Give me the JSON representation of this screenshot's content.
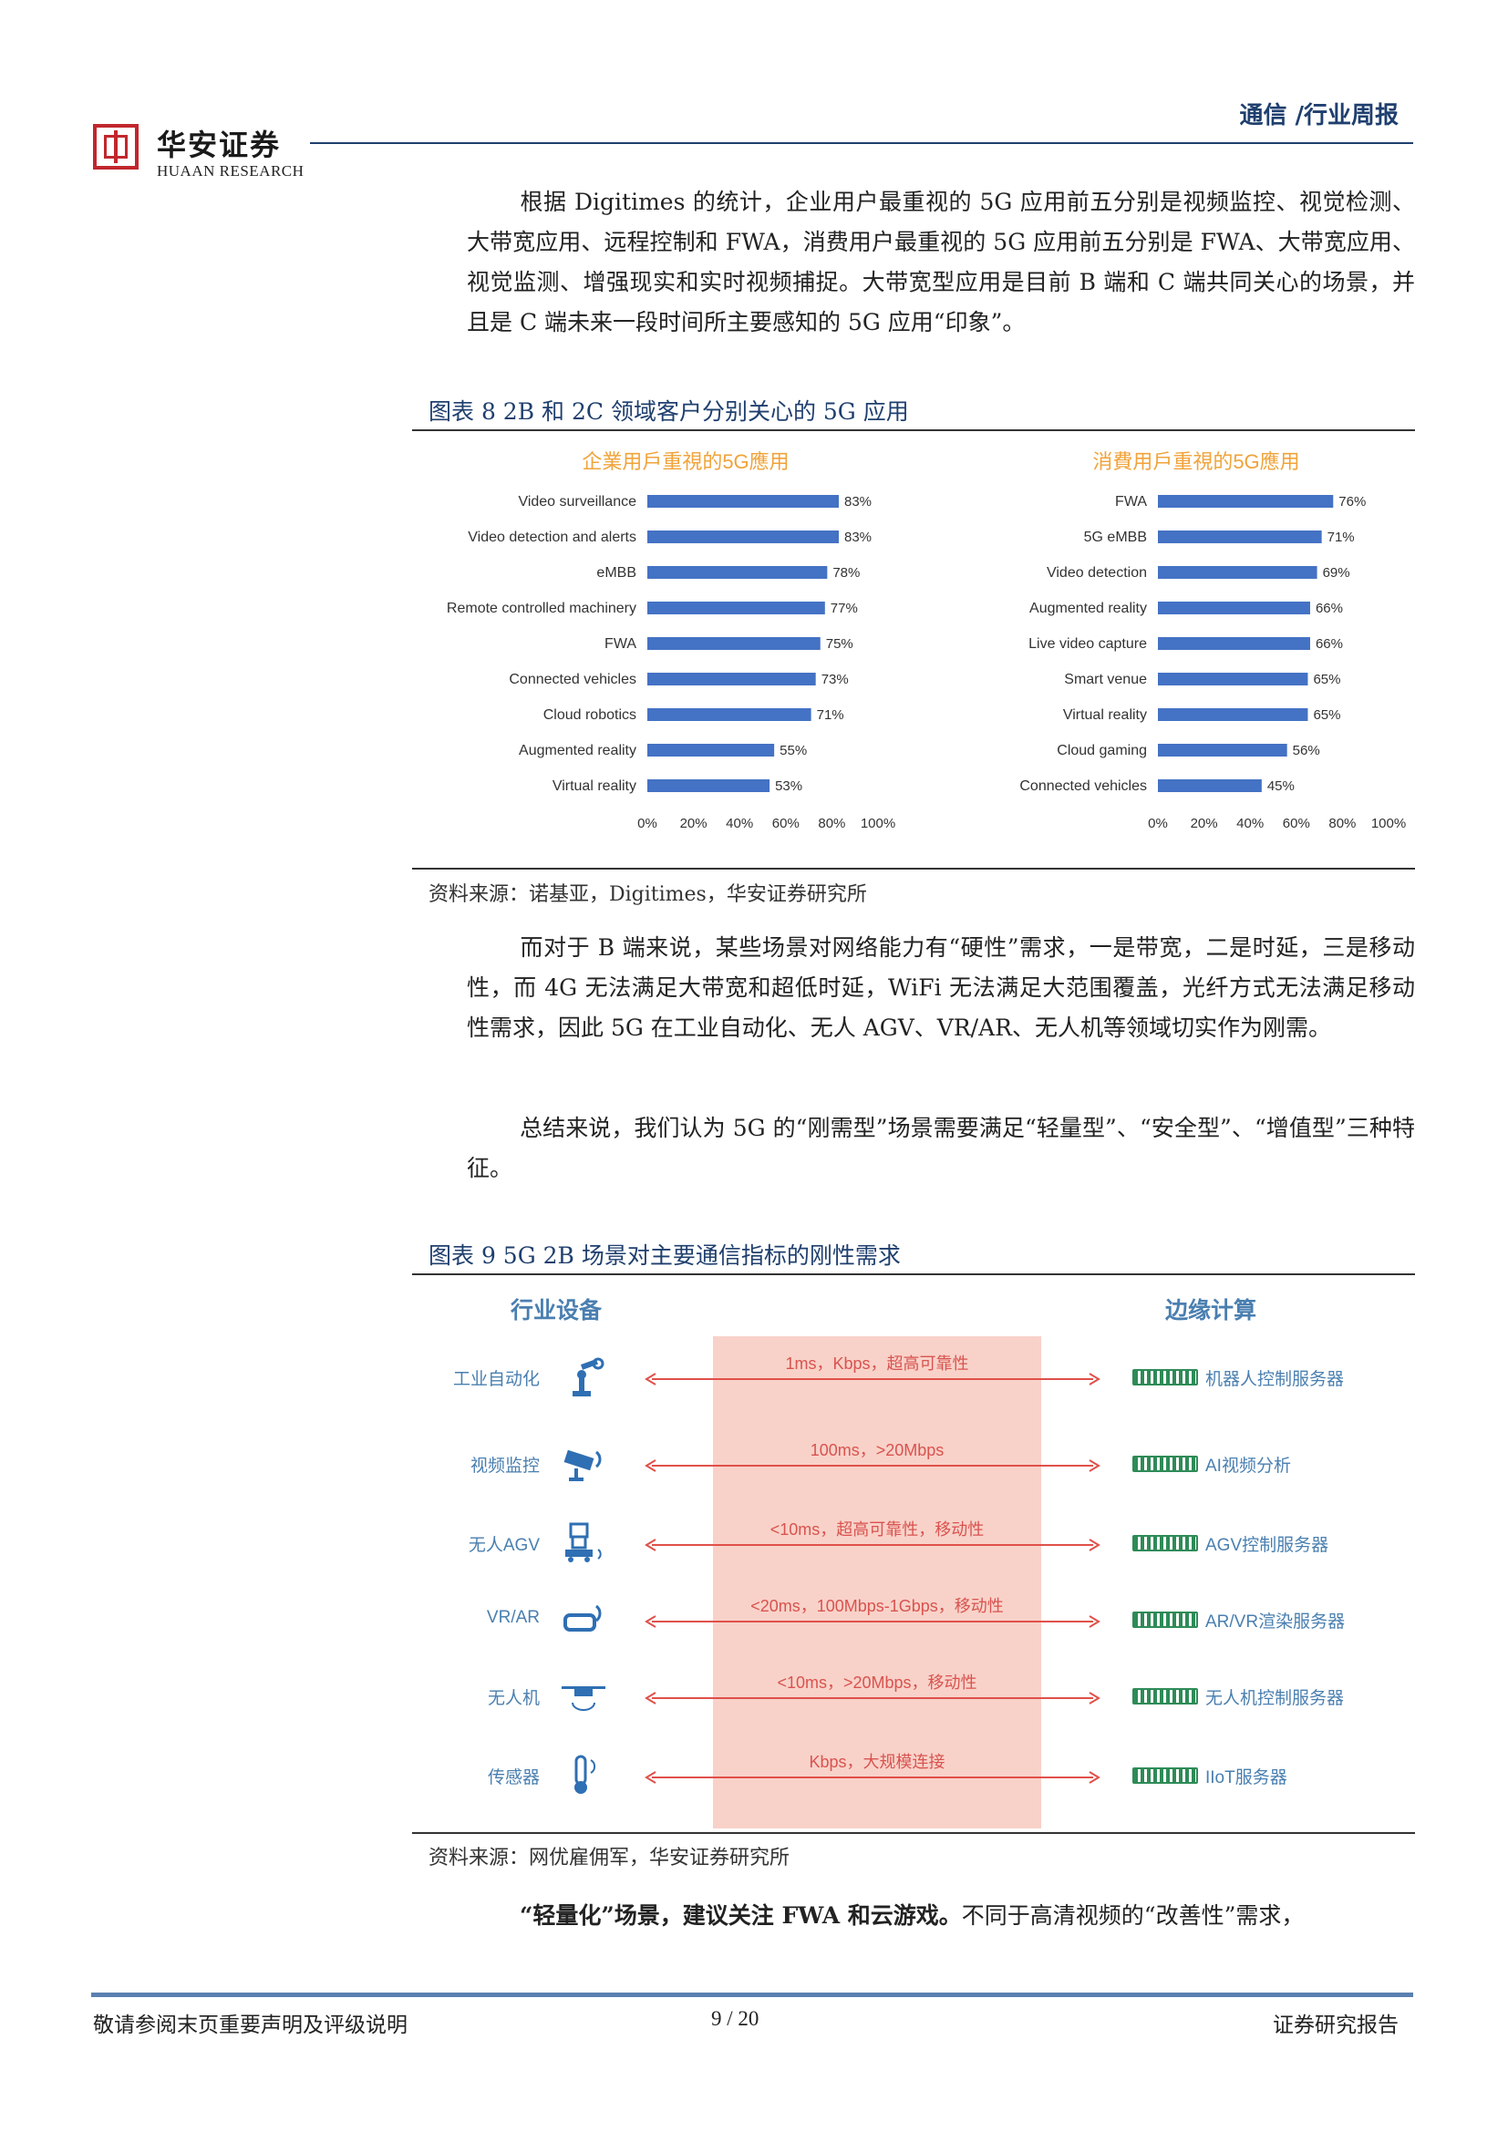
{
  "header": {
    "brand_cn": "华安证券",
    "brand_en": "HUAAN RESEARCH",
    "title": "通信 /行业周报"
  },
  "paragraphs": {
    "p1": "根据 Digitimes 的统计，企业用户最重视的 5G 应用前五分别是视频监控、视觉检测、大带宽应用、远程控制和 FWA，消费用户最重视的 5G 应用前五分别是 FWA、大带宽应用、视觉监测、增强现实和实时视频捕捉。大带宽型应用是目前 B 端和 C 端共同关心的场景，并且是 C 端未来一段时间所主要感知的 5G 应用“印象”。",
    "p2": "而对于 B 端来说，某些场景对网络能力有“硬性”需求，一是带宽，二是时延，三是移动性，而 4G 无法满足大带宽和超低时延，WiFi 无法满足大范围覆盖，光纤方式无法满足移动性需求，因此 5G 在工业自动化、无人 AGV、VR/AR、无人机等领域切实作为刚需。",
    "p3": "总结来说，我们认为 5G 的“刚需型”场景需要满足“轻量型”、“安全型”、“增值型”三种特征。",
    "p4_bold": "“轻量化”场景，建议关注 FWA 和云游戏。",
    "p4_rest": "不同于高清视频的“改善性”需求，"
  },
  "figure8": {
    "caption": "图表 8 2B 和 2C 领域客户分别关心的 5G 应用",
    "source": "资料来源：诺基亚，Digitimes，华安证券研究所"
  },
  "chart_data": [
    {
      "type": "bar",
      "orientation": "horizontal",
      "title": "企業用戶重視的5G應用",
      "categories": [
        "Video surveillance",
        "Video detection and alerts",
        "eMBB",
        "Remote controlled machinery",
        "FWA",
        "Connected vehicles",
        "Cloud robotics",
        "Augmented reality",
        "Virtual reality"
      ],
      "values": [
        83,
        83,
        78,
        77,
        75,
        73,
        71,
        55,
        53
      ],
      "value_labels": [
        "83%",
        "83%",
        "78%",
        "77%",
        "75%",
        "73%",
        "71%",
        "55%",
        "53%"
      ],
      "xlim": [
        0,
        100
      ],
      "x_ticks": [
        "0%",
        "20%",
        "40%",
        "60%",
        "80%",
        "100%"
      ],
      "grid": false,
      "color": "#4472c4"
    },
    {
      "type": "bar",
      "orientation": "horizontal",
      "title": "消費用戶重視的5G應用",
      "categories": [
        "FWA",
        "5G eMBB",
        "Video detection",
        "Augmented reality",
        "Live video capture",
        "Smart venue",
        "Virtual reality",
        "Cloud gaming",
        "Connected vehicles"
      ],
      "values": [
        76,
        71,
        69,
        66,
        66,
        65,
        65,
        56,
        45
      ],
      "value_labels": [
        "76%",
        "71%",
        "69%",
        "66%",
        "66%",
        "65%",
        "65%",
        "56%",
        "45%"
      ],
      "xlim": [
        0,
        100
      ],
      "x_ticks": [
        "0%",
        "20%",
        "40%",
        "60%",
        "80%",
        "100%"
      ],
      "grid": false,
      "color": "#4472c4"
    }
  ],
  "figure9": {
    "caption": "图表 9 5G 2B 场景对主要通信指标的刚性需求",
    "source": "资料来源：网优雇佣军，华安证券研究所",
    "left_header": "行业设备",
    "right_header": "边缘计算",
    "rows": [
      {
        "device": "工业自动化",
        "icon": "robot-arm-icon",
        "requirement": "1ms，Kbps，超高可靠性",
        "server": "机器人控制服务器"
      },
      {
        "device": "视频监控",
        "icon": "camera-icon",
        "requirement": "100ms，>20Mbps",
        "server": "AI视频分析"
      },
      {
        "device": "无人AGV",
        "icon": "agv-icon",
        "requirement": "<10ms，超高可靠性，移动性",
        "server": "AGV控制服务器"
      },
      {
        "device": "VR/AR",
        "icon": "vr-headset-icon",
        "requirement": "<20ms，100Mbps-1Gbps，移动性",
        "server": "AR/VR渲染服务器"
      },
      {
        "device": "无人机",
        "icon": "drone-icon",
        "requirement": "<10ms，>20Mbps，移动性",
        "server": "无人机控制服务器"
      },
      {
        "device": "传感器",
        "icon": "thermometer-icon",
        "requirement": "Kbps，大规模连接",
        "server": "IIoT服务器"
      }
    ],
    "colors": {
      "band": "#f8d2c9",
      "arrow": "#e0504a",
      "label": "#4a7fb0",
      "server": "#2e8b57"
    }
  },
  "footer": {
    "left": "敬请参阅末页重要声明及评级说明",
    "page": "9 / 20",
    "right": "证券研究报告"
  }
}
